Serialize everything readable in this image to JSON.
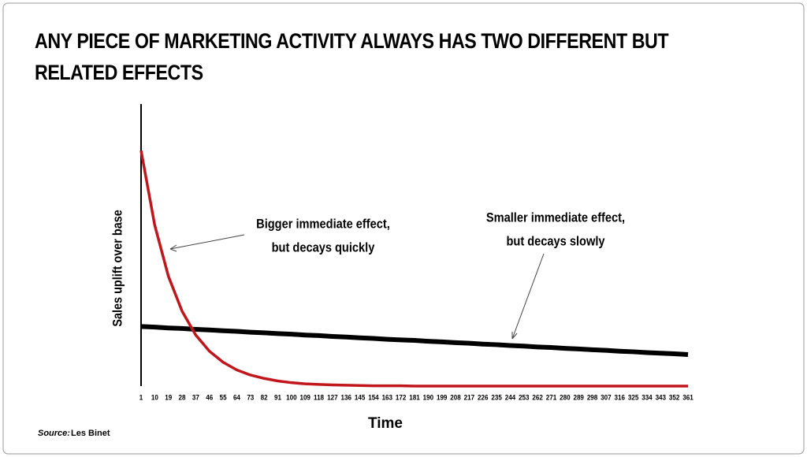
{
  "chart_data": {
    "type": "line",
    "title": "ANY PIECE OF MARKETING ACTIVITY ALWAYS HAS TWO DIFFERENT BUT RELATED EFFECTS",
    "x_label": "Time",
    "y_label": "Sales uplift over base",
    "x": [
      1,
      10,
      19,
      28,
      37,
      46,
      55,
      64,
      73,
      82,
      91,
      100,
      109,
      118,
      127,
      136,
      145,
      154,
      163,
      172,
      181,
      190,
      199,
      208,
      217,
      226,
      235,
      244,
      253,
      262,
      271,
      280,
      289,
      298,
      307,
      316,
      325,
      334,
      343,
      352,
      361
    ],
    "xlim": [
      1,
      361
    ],
    "ylim": [
      0,
      100
    ],
    "series": [
      {
        "color": "#c0161c",
        "values": [
          83.0,
          56.7,
          38.7,
          26.4,
          18.0,
          12.3,
          8.4,
          5.7,
          3.9,
          2.7,
          1.8,
          1.2,
          0.8,
          0.6,
          0.4,
          0.3,
          0.2,
          0.1,
          0.1,
          0.1,
          0.0,
          0.0,
          0.0,
          0.0,
          0.0,
          0.0,
          0.0,
          0.0,
          0.0,
          0.0,
          0.0,
          0.0,
          0.0,
          0.0,
          0.0,
          0.0,
          0.0,
          0.0,
          0.0,
          0.0,
          0.0
        ]
      },
      {
        "color": "#000000",
        "values": [
          21.0,
          20.8,
          20.5,
          20.3,
          20.0,
          19.8,
          19.5,
          19.3,
          19.0,
          18.8,
          18.5,
          18.3,
          18.0,
          17.8,
          17.5,
          17.3,
          17.0,
          16.8,
          16.5,
          16.3,
          16.1,
          15.8,
          15.6,
          15.3,
          15.1,
          14.8,
          14.6,
          14.3,
          14.1,
          13.8,
          13.6,
          13.3,
          13.1,
          12.8,
          12.6,
          12.3,
          12.1,
          11.8,
          11.6,
          11.4,
          11.1
        ]
      }
    ],
    "annotations": [
      {
        "text": [
          "Bigger immediate effect,",
          "but decays quickly"
        ]
      },
      {
        "text": [
          "Smaller immediate effect,",
          "but decays slowly"
        ]
      }
    ],
    "source_label": "Source:",
    "source": "Les Binet"
  }
}
